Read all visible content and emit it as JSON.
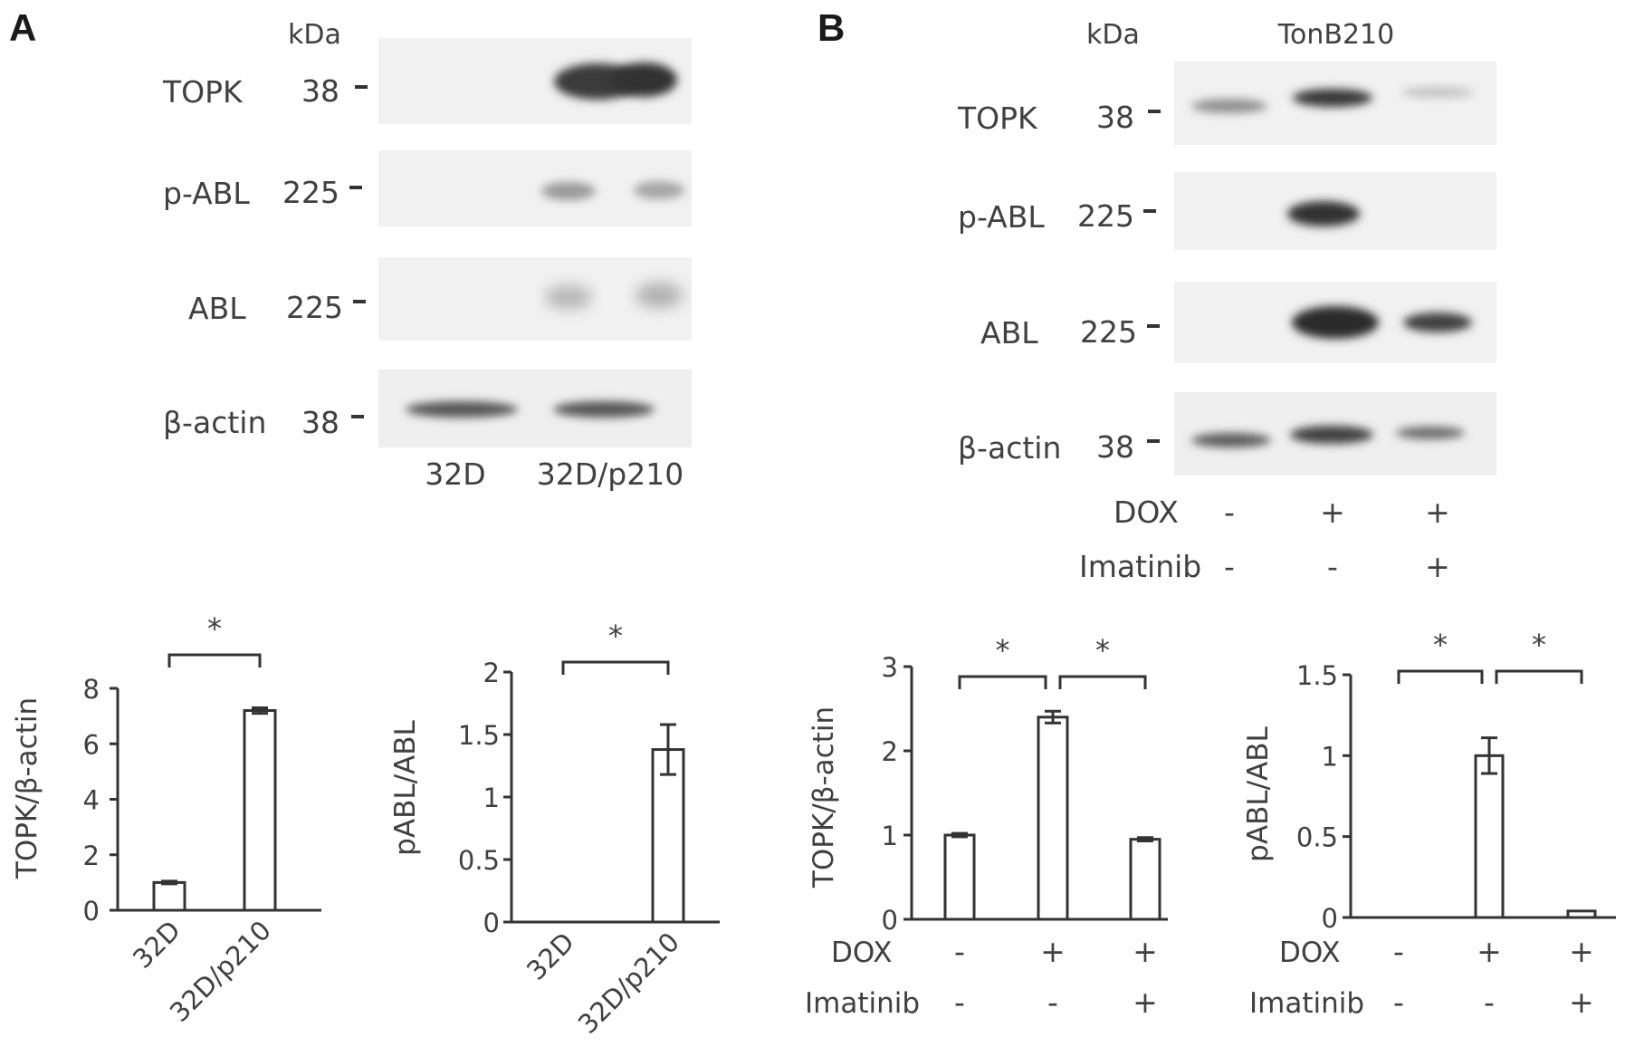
{
  "panels": [
    {
      "letter": "A",
      "kda_label": "kDa",
      "blot_rows": [
        {
          "protein": "TOPK",
          "kda": "38"
        },
        {
          "protein": "p-ABL",
          "kda": "225"
        },
        {
          "protein": "ABL",
          "kda": "225"
        },
        {
          "protein": "β-actin",
          "kda": "38"
        }
      ],
      "lane_labels": [
        "32D",
        "32D/p210"
      ]
    },
    {
      "letter": "B",
      "kda_label": "kDa",
      "cell_line": "TonB210",
      "blot_rows": [
        {
          "protein": "TOPK",
          "kda": "38"
        },
        {
          "protein": "p-ABL",
          "kda": "225"
        },
        {
          "protein": "ABL",
          "kda": "225"
        },
        {
          "protein": "β-actin",
          "kda": "38"
        }
      ],
      "treatments": [
        {
          "name": "DOX",
          "values": [
            "-",
            "+",
            "+"
          ]
        },
        {
          "name": "Imatinib",
          "values": [
            "-",
            "-",
            "+"
          ]
        }
      ]
    }
  ],
  "chart_data": [
    {
      "type": "bar",
      "panel": "A",
      "ylabel": "TOPK/β-actin",
      "categories": [
        "32D",
        "32D/p210"
      ],
      "values": [
        1.0,
        7.2
      ],
      "errors": [
        0.05,
        0.1
      ],
      "ylim": [
        0,
        8
      ],
      "yticks": [
        "0",
        "2",
        "4",
        "6",
        "8"
      ],
      "yticks_num": [
        0,
        2,
        4,
        6,
        8
      ],
      "significance": [
        {
          "from": 0,
          "to": 1,
          "label": "*"
        }
      ]
    },
    {
      "type": "bar",
      "panel": "A",
      "ylabel": "pABL/ABL",
      "categories": [
        "32D",
        "32D/p210"
      ],
      "values": [
        0,
        1.38
      ],
      "errors": [
        0,
        0.2
      ],
      "ylim": [
        0,
        2
      ],
      "yticks": [
        "0",
        "0.5",
        "1",
        "1.5",
        "2"
      ],
      "yticks_num": [
        0,
        0.5,
        1,
        1.5,
        2
      ],
      "significance": [
        {
          "from": 0,
          "to": 1,
          "label": "*"
        }
      ]
    },
    {
      "type": "bar",
      "panel": "B",
      "ylabel": "TOPK/β-actin",
      "values": [
        1.0,
        2.4,
        0.95
      ],
      "errors": [
        0.02,
        0.07,
        0.02
      ],
      "ylim": [
        0,
        3
      ],
      "yticks": [
        "0",
        "1",
        "2",
        "3"
      ],
      "yticks_num": [
        0,
        1,
        2,
        3
      ],
      "treatments": [
        {
          "name": "DOX",
          "values": [
            "-",
            "+",
            "+"
          ]
        },
        {
          "name": "Imatinib",
          "values": [
            "-",
            "-",
            "+"
          ]
        }
      ],
      "significance": [
        {
          "from": 0,
          "to": 1,
          "label": "*"
        },
        {
          "from": 1,
          "to": 2,
          "label": "*"
        }
      ]
    },
    {
      "type": "bar",
      "panel": "B",
      "ylabel": "pABL/ABL",
      "values": [
        0,
        1.0,
        0.04
      ],
      "errors": [
        0,
        0.11,
        0
      ],
      "ylim": [
        0,
        1.5
      ],
      "yticks": [
        "0",
        "0.5",
        "1",
        "1.5"
      ],
      "yticks_num": [
        0,
        0.5,
        1,
        1.5
      ],
      "treatments": [
        {
          "name": "DOX",
          "values": [
            "-",
            "+",
            "+"
          ]
        },
        {
          "name": "Imatinib",
          "values": [
            "-",
            "-",
            "+"
          ]
        }
      ],
      "significance": [
        {
          "from": 0,
          "to": 1,
          "label": "*"
        },
        {
          "from": 1,
          "to": 2,
          "label": "*"
        }
      ]
    }
  ]
}
